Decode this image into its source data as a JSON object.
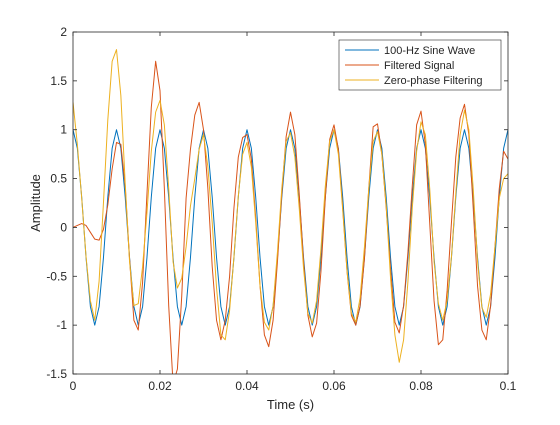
{
  "chart_data": {
    "type": "line",
    "xlabel": "Time (s)",
    "ylabel": "Amplitude",
    "xlim": [
      0,
      0.1
    ],
    "ylim": [
      -1.5,
      2
    ],
    "xticks": [
      0,
      0.02,
      0.04,
      0.06,
      0.08,
      0.1
    ],
    "xtick_labels": [
      "0",
      "0.02",
      "0.04",
      "0.06",
      "0.08",
      "0.1"
    ],
    "yticks": [
      -1.5,
      -1,
      -0.5,
      0,
      0.5,
      1,
      1.5,
      2
    ],
    "ytick_labels": [
      "-1.5",
      "-1",
      "-0.5",
      "0",
      "0.5",
      "1",
      "1.5",
      "2"
    ],
    "grid": false,
    "legend_position": "top-right",
    "series": [
      {
        "name": "100-Hz Sine Wave",
        "color": "#0072BD",
        "x": [
          0,
          0.001,
          0.002,
          0.003,
          0.004,
          0.005,
          0.006,
          0.007,
          0.008,
          0.009,
          0.01,
          0.011,
          0.012,
          0.013,
          0.014,
          0.015,
          0.016,
          0.017,
          0.018,
          0.019,
          0.02,
          0.021,
          0.022,
          0.023,
          0.024,
          0.025,
          0.026,
          0.027,
          0.028,
          0.029,
          0.03,
          0.031,
          0.032,
          0.033,
          0.034,
          0.035,
          0.036,
          0.037,
          0.038,
          0.039,
          0.04,
          0.041,
          0.042,
          0.043,
          0.044,
          0.045,
          0.046,
          0.047,
          0.048,
          0.049,
          0.05,
          0.051,
          0.052,
          0.053,
          0.054,
          0.055,
          0.056,
          0.057,
          0.058,
          0.059,
          0.06,
          0.061,
          0.062,
          0.063,
          0.064,
          0.065,
          0.066,
          0.067,
          0.068,
          0.069,
          0.07,
          0.071,
          0.072,
          0.073,
          0.074,
          0.075,
          0.076,
          0.077,
          0.078,
          0.079,
          0.08,
          0.081,
          0.082,
          0.083,
          0.084,
          0.085,
          0.086,
          0.087,
          0.088,
          0.089,
          0.09,
          0.091,
          0.092,
          0.093,
          0.094,
          0.095,
          0.096,
          0.097,
          0.098,
          0.099,
          0.1
        ],
        "values": [
          1,
          0.81,
          0.31,
          -0.31,
          -0.81,
          -1,
          -0.81,
          -0.31,
          0.31,
          0.81,
          1,
          0.81,
          0.31,
          -0.31,
          -0.81,
          -1,
          -0.81,
          -0.31,
          0.31,
          0.81,
          1,
          0.81,
          0.31,
          -0.31,
          -0.81,
          -1,
          -0.81,
          -0.31,
          0.31,
          0.81,
          1,
          0.81,
          0.31,
          -0.31,
          -0.81,
          -1,
          -0.81,
          -0.31,
          0.31,
          0.81,
          1,
          0.81,
          0.31,
          -0.31,
          -0.81,
          -1,
          -0.81,
          -0.31,
          0.31,
          0.81,
          1,
          0.81,
          0.31,
          -0.31,
          -0.81,
          -1,
          -0.81,
          -0.31,
          0.31,
          0.81,
          1,
          0.81,
          0.31,
          -0.31,
          -0.81,
          -1,
          -0.81,
          -0.31,
          0.31,
          0.81,
          1,
          0.81,
          0.31,
          -0.31,
          -0.81,
          -1,
          -0.81,
          -0.31,
          0.31,
          0.81,
          1,
          0.81,
          0.31,
          -0.31,
          -0.81,
          -1,
          -0.81,
          -0.31,
          0.31,
          0.81,
          1,
          0.81,
          0.31,
          -0.31,
          -0.81,
          -1,
          -0.81,
          -0.31,
          0.31,
          0.81,
          1
        ]
      },
      {
        "name": "Filtered Signal",
        "color": "#D95319",
        "x": [
          0,
          0.001,
          0.002,
          0.003,
          0.004,
          0.005,
          0.006,
          0.007,
          0.008,
          0.009,
          0.01,
          0.011,
          0.012,
          0.013,
          0.014,
          0.015,
          0.016,
          0.017,
          0.018,
          0.019,
          0.02,
          0.021,
          0.022,
          0.023,
          0.024,
          0.025,
          0.026,
          0.027,
          0.028,
          0.029,
          0.03,
          0.031,
          0.032,
          0.033,
          0.034,
          0.035,
          0.036,
          0.037,
          0.038,
          0.039,
          0.04,
          0.041,
          0.042,
          0.043,
          0.044,
          0.045,
          0.046,
          0.047,
          0.048,
          0.049,
          0.05,
          0.051,
          0.052,
          0.053,
          0.054,
          0.055,
          0.056,
          0.057,
          0.058,
          0.059,
          0.06,
          0.061,
          0.062,
          0.063,
          0.064,
          0.065,
          0.066,
          0.067,
          0.068,
          0.069,
          0.07,
          0.071,
          0.072,
          0.073,
          0.074,
          0.075,
          0.076,
          0.077,
          0.078,
          0.079,
          0.08,
          0.081,
          0.082,
          0.083,
          0.084,
          0.085,
          0.086,
          0.087,
          0.088,
          0.089,
          0.09,
          0.091,
          0.092,
          0.093,
          0.094,
          0.095,
          0.096,
          0.097,
          0.098,
          0.099,
          0.1
        ],
        "values": [
          0,
          0.02,
          0.04,
          0.02,
          -0.05,
          -0.12,
          -0.13,
          -0.02,
          0.23,
          0.6,
          0.87,
          0.85,
          0.42,
          -0.32,
          -0.95,
          -1.05,
          -0.56,
          0.34,
          1.23,
          1.7,
          1.4,
          0.4,
          -0.8,
          -1.6,
          -1.45,
          -0.7,
          0.3,
          0.8,
          1.15,
          1.28,
          1.0,
          0.4,
          -0.4,
          -0.95,
          -1.15,
          -0.95,
          -0.5,
          0.2,
          0.72,
          0.92,
          0.95,
          0.7,
          0.1,
          -0.6,
          -1.1,
          -1.22,
          -0.95,
          -0.35,
          0.35,
          0.93,
          1.18,
          0.95,
          0.35,
          -0.35,
          -0.9,
          -1.12,
          -0.98,
          -0.45,
          0.3,
          0.9,
          1.05,
          0.8,
          0.2,
          -0.45,
          -0.9,
          -1.0,
          -0.8,
          -0.32,
          0.4,
          1.03,
          1.06,
          0.75,
          0.2,
          -0.42,
          -0.97,
          -1.08,
          -0.8,
          -0.25,
          0.43,
          1.05,
          1.19,
          0.85,
          0.05,
          -0.75,
          -1.2,
          -1.15,
          -0.65,
          0.05,
          0.72,
          1.12,
          1.26,
          0.95,
          0.2,
          -0.6,
          -1.05,
          -1.15,
          -0.8,
          -0.2,
          0.4,
          0.78,
          0.7
        ]
      },
      {
        "name": "Zero-phase Filtering",
        "color": "#EDB120",
        "x": [
          0,
          0.001,
          0.002,
          0.003,
          0.004,
          0.005,
          0.006,
          0.007,
          0.008,
          0.009,
          0.01,
          0.011,
          0.012,
          0.013,
          0.014,
          0.015,
          0.016,
          0.017,
          0.018,
          0.019,
          0.02,
          0.021,
          0.022,
          0.023,
          0.024,
          0.025,
          0.026,
          0.027,
          0.028,
          0.029,
          0.03,
          0.031,
          0.032,
          0.033,
          0.034,
          0.035,
          0.036,
          0.037,
          0.038,
          0.039,
          0.04,
          0.041,
          0.042,
          0.043,
          0.044,
          0.045,
          0.046,
          0.047,
          0.048,
          0.049,
          0.05,
          0.051,
          0.052,
          0.053,
          0.054,
          0.055,
          0.056,
          0.057,
          0.058,
          0.059,
          0.06,
          0.061,
          0.062,
          0.063,
          0.064,
          0.065,
          0.066,
          0.067,
          0.068,
          0.069,
          0.07,
          0.071,
          0.072,
          0.073,
          0.074,
          0.075,
          0.076,
          0.077,
          0.078,
          0.079,
          0.08,
          0.081,
          0.082,
          0.083,
          0.084,
          0.085,
          0.086,
          0.087,
          0.088,
          0.089,
          0.09,
          0.091,
          0.092,
          0.093,
          0.094,
          0.095,
          0.096,
          0.097,
          0.098,
          0.099,
          0.1
        ],
        "values": [
          1.28,
          0.85,
          0.3,
          -0.3,
          -0.75,
          -0.95,
          -0.55,
          0.25,
          1.1,
          1.7,
          1.82,
          1.35,
          0.45,
          -0.35,
          -0.8,
          -0.78,
          -0.4,
          0.15,
          0.78,
          1.18,
          1.3,
          1.05,
          0.4,
          -0.35,
          -0.62,
          -0.52,
          -0.2,
          0.22,
          0.5,
          0.8,
          0.95,
          0.62,
          0.05,
          -0.62,
          -1.1,
          -1.15,
          -0.85,
          -0.3,
          0.32,
          0.75,
          0.87,
          0.62,
          0.05,
          -0.6,
          -0.97,
          -1.05,
          -0.8,
          -0.25,
          0.4,
          0.88,
          0.97,
          0.72,
          0.2,
          -0.42,
          -0.88,
          -0.98,
          -0.75,
          -0.22,
          0.42,
          0.88,
          1.0,
          0.75,
          0.18,
          -0.45,
          -0.88,
          -0.97,
          -0.72,
          -0.2,
          0.4,
          0.88,
          0.98,
          0.75,
          0.22,
          -0.52,
          -1.1,
          -1.38,
          -1.15,
          -0.55,
          0.2,
          0.78,
          1.08,
          0.95,
          0.4,
          -0.35,
          -0.78,
          -0.95,
          -0.75,
          -0.3,
          0.35,
          0.95,
          1.2,
          1.0,
          0.4,
          -0.35,
          -0.82,
          -0.92,
          -0.68,
          -0.2,
          0.3,
          0.5,
          0.55
        ]
      }
    ]
  }
}
